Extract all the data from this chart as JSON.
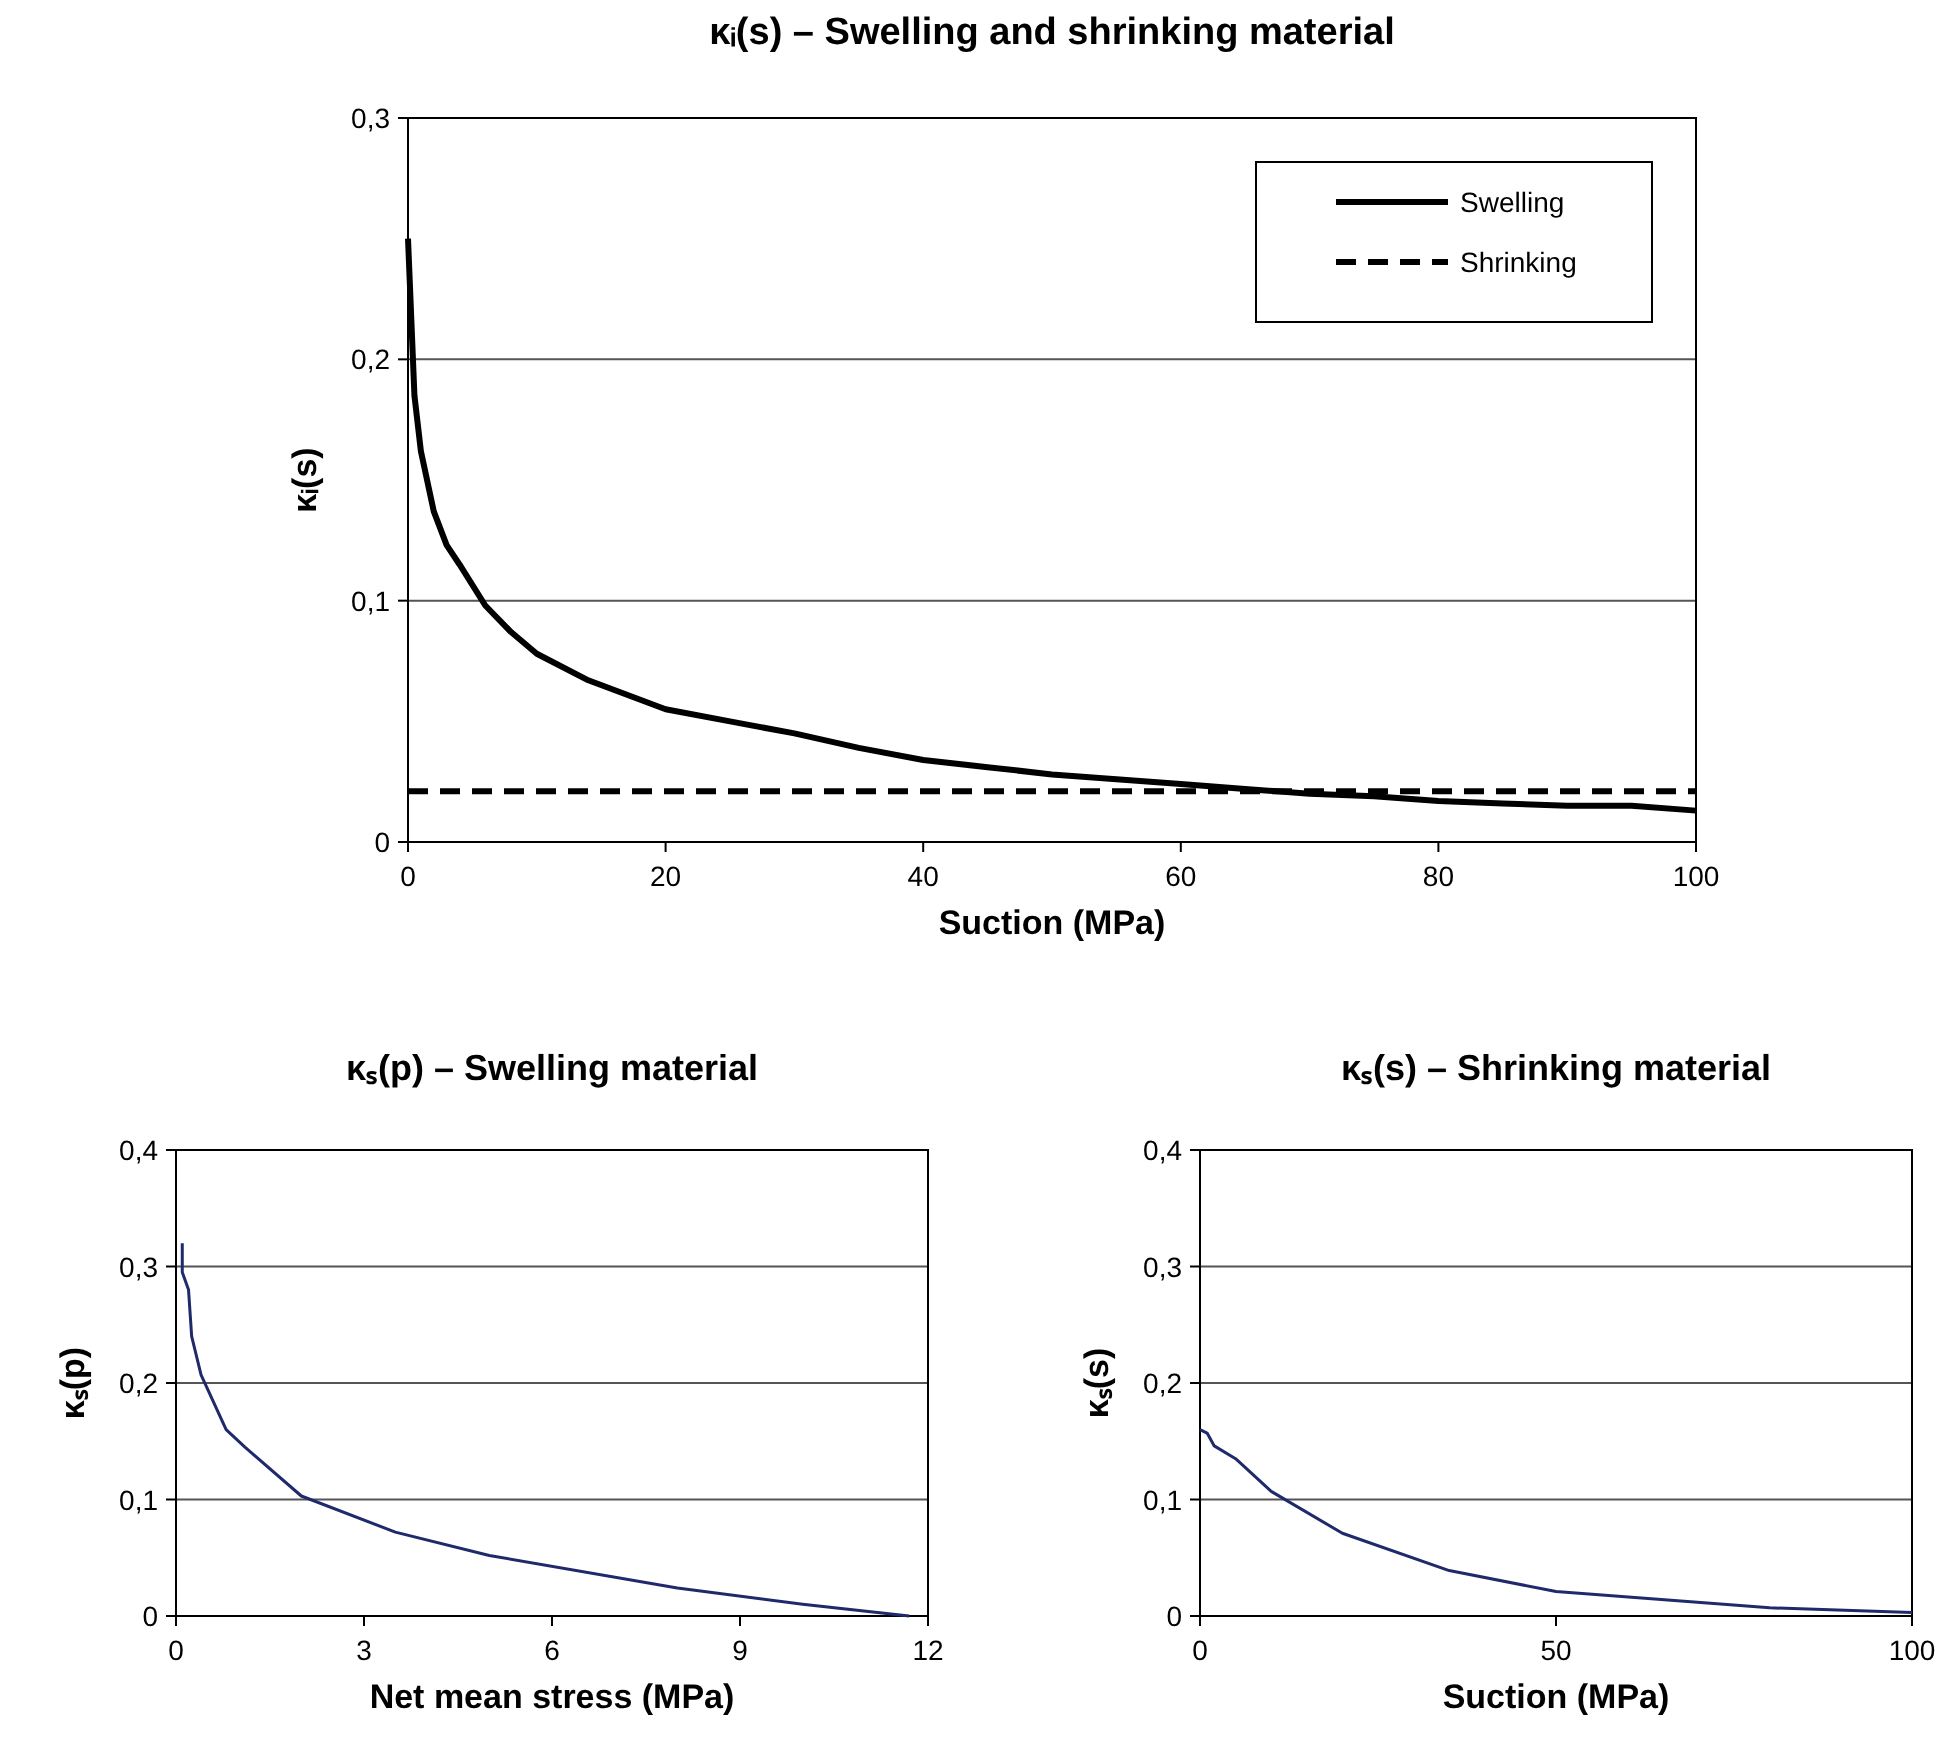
{
  "chart_data": [
    {
      "type": "line",
      "title": "κᵢ(s) – Swelling and shrinking material",
      "xlabel": "Suction (MPa)",
      "ylabel": "κᵢ(s)",
      "xlim": [
        0,
        100
      ],
      "xticks": [
        0,
        20,
        40,
        60,
        80,
        100
      ],
      "ylim": [
        0,
        0.3
      ],
      "yticks": [
        {
          "value": 0,
          "label": "0"
        },
        {
          "value": 0.1,
          "label": "0,1"
        },
        {
          "value": 0.2,
          "label": "0,2"
        },
        {
          "value": 0.3,
          "label": "0,3"
        }
      ],
      "grid": "y",
      "legend": "top right",
      "series": [
        {
          "name": "Swelling",
          "color": "#000000",
          "line_style": "solid",
          "x": [
            0,
            0.5,
            1,
            2,
            3,
            4,
            6,
            8,
            10,
            14,
            20,
            25,
            30,
            35,
            40,
            45,
            50,
            55,
            60,
            65,
            70,
            75,
            80,
            85,
            90,
            95,
            100
          ],
          "values": [
            0.25,
            0.185,
            0.162,
            0.137,
            0.123,
            0.115,
            0.098,
            0.087,
            0.078,
            0.067,
            0.055,
            0.05,
            0.045,
            0.039,
            0.034,
            0.031,
            0.028,
            0.026,
            0.024,
            0.022,
            0.02,
            0.019,
            0.017,
            0.016,
            0.015,
            0.015,
            0.013
          ]
        },
        {
          "name": "Shrinking",
          "color": "#000000",
          "line_style": "dashed",
          "x": [
            0,
            100
          ],
          "values": [
            0.021,
            0.021
          ]
        }
      ]
    },
    {
      "type": "line",
      "title": "κₛ(p) – Swelling material",
      "xlabel": "Net mean stress (MPa)",
      "ylabel": "κₛ(p)",
      "xlim": [
        0,
        12
      ],
      "xticks": [
        0,
        3,
        6,
        9,
        12
      ],
      "ylim": [
        0,
        0.4
      ],
      "yticks": [
        {
          "value": 0,
          "label": "0"
        },
        {
          "value": 0.1,
          "label": "0,1"
        },
        {
          "value": 0.2,
          "label": "0,2"
        },
        {
          "value": 0.3,
          "label": "0,3"
        },
        {
          "value": 0.4,
          "label": "0,4"
        }
      ],
      "grid": "y",
      "series": [
        {
          "color": "#1f2a6b",
          "x": [
            0.1,
            0.1,
            0.2,
            0.25,
            0.4,
            0.8,
            1.1,
            2,
            3.5,
            5,
            8,
            10,
            11.7
          ],
          "values": [
            0.32,
            0.295,
            0.28,
            0.24,
            0.207,
            0.16,
            0.145,
            0.103,
            0.072,
            0.052,
            0.024,
            0.01,
            0
          ]
        }
      ]
    },
    {
      "type": "line",
      "title": "κₛ(s) – Shrinking material",
      "xlabel": "Suction (MPa)",
      "ylabel": "κₛ(s)",
      "xlim": [
        0,
        100
      ],
      "xticks": [
        0,
        50,
        100
      ],
      "ylim": [
        0,
        0.4
      ],
      "yticks": [
        {
          "value": 0,
          "label": "0"
        },
        {
          "value": 0.1,
          "label": "0,1"
        },
        {
          "value": 0.2,
          "label": "0,2"
        },
        {
          "value": 0.3,
          "label": "0,3"
        },
        {
          "value": 0.4,
          "label": "0,4"
        }
      ],
      "grid": "y",
      "series": [
        {
          "color": "#1f2a6b",
          "x": [
            0,
            1,
            2,
            5,
            10,
            20,
            35,
            50,
            80,
            100
          ],
          "values": [
            0.16,
            0.157,
            0.146,
            0.135,
            0.107,
            0.071,
            0.039,
            0.021,
            0.007,
            0.003
          ]
        }
      ]
    }
  ]
}
